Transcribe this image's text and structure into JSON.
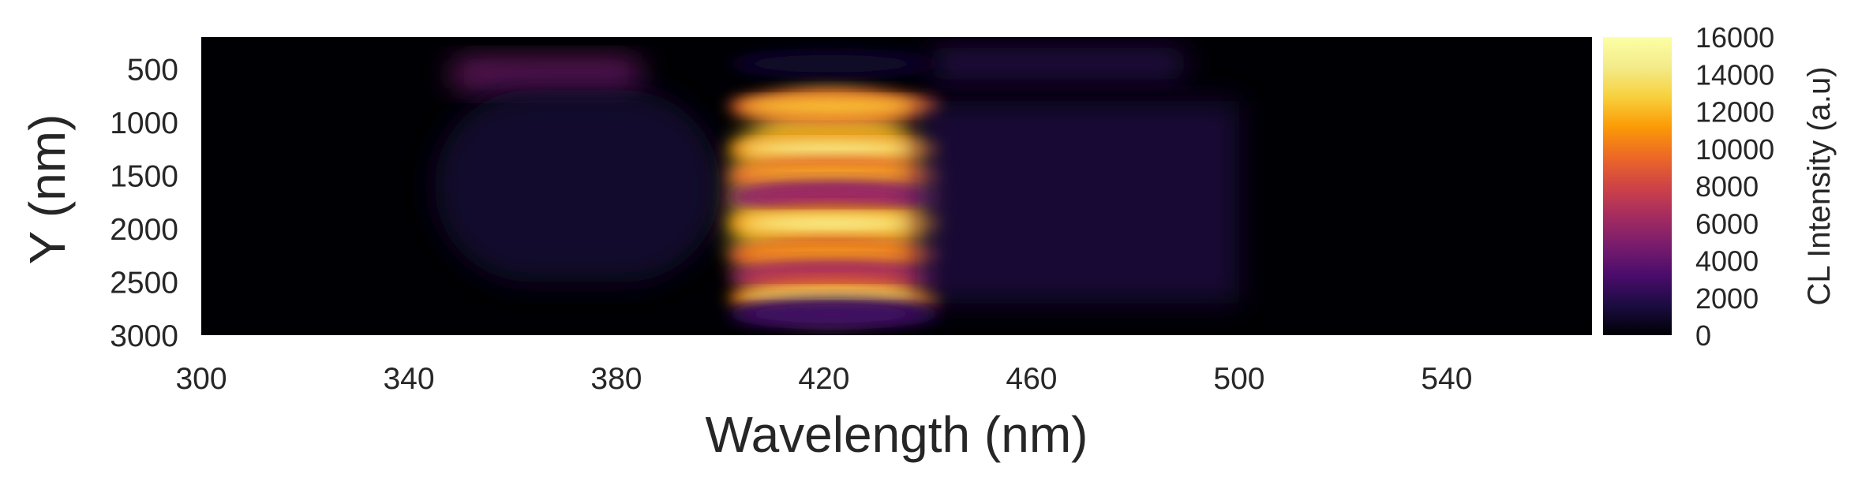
{
  "chart_data": {
    "type": "heatmap",
    "title": "",
    "xlabel": "Wavelength (nm)",
    "ylabel": "Y (nm)",
    "xlim": [
      300,
      568
    ],
    "ylim": [
      3000,
      200
    ],
    "xticks": [
      300,
      340,
      380,
      420,
      460,
      500,
      540
    ],
    "yticks": [
      500,
      1000,
      1500,
      2000,
      2500,
      3000
    ],
    "colormap": "inferno",
    "grid": false,
    "colorbar": {
      "label": "CL Intensity (a.u)",
      "range": [
        0,
        16000
      ],
      "ticks": [
        0,
        2000,
        4000,
        6000,
        8000,
        10000,
        12000,
        14000,
        16000
      ],
      "placement": "right"
    },
    "features": [
      {
        "wavelength_range": [
          348,
          385
        ],
        "y_range": [
          400,
          700
        ],
        "peak_intensity": 5500
      },
      {
        "wavelength_range": [
          402,
          440
        ],
        "y_range": [
          700,
          2800
        ],
        "peak_intensity": 15000
      },
      {
        "wavelength_range": [
          345,
          400
        ],
        "y_range": [
          700,
          2500
        ],
        "peak_intensity": 1500
      },
      {
        "wavelength_range": [
          440,
          490
        ],
        "y_range": [
          300,
          600
        ],
        "peak_intensity": 2500
      }
    ],
    "row_profile": [
      {
        "y": 450,
        "intensity": 1000
      },
      {
        "y": 850,
        "intensity": 12500
      },
      {
        "y": 1250,
        "intensity": 14500
      },
      {
        "y": 1500,
        "intensity": 12000
      },
      {
        "y": 1700,
        "intensity": 6500
      },
      {
        "y": 1950,
        "intensity": 15000
      },
      {
        "y": 2250,
        "intensity": 11500
      },
      {
        "y": 2450,
        "intensity": 7500
      },
      {
        "y": 2650,
        "intensity": 14000
      },
      {
        "y": 2800,
        "intensity": 3000
      }
    ]
  }
}
